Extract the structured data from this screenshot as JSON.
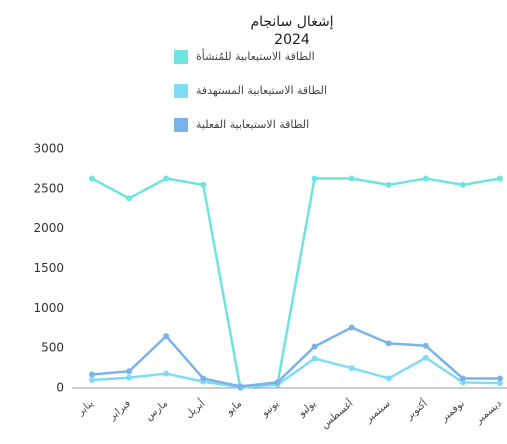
{
  "chart_data": {
    "type": "line",
    "title": "إشغال سانجام",
    "subtitle": "2024",
    "categories": [
      "يناير",
      "فبراير",
      "مارس",
      "أبريل",
      "مايو",
      "يونيو",
      "يوليو",
      "أغسطس",
      "سبتمبر",
      "أكتوبر",
      "نوفمبر",
      "ديسمبر"
    ],
    "series": [
      {
        "name": "الطاقة الاستيعابية للمُنشأة",
        "color": "#6fe3df",
        "values": [
          2630,
          2380,
          2630,
          2550,
          0,
          50,
          2630,
          2630,
          2550,
          2630,
          2550,
          2630
        ]
      },
      {
        "name": "الطاقة الاستيعابية المستهدفة",
        "color": "#7fdcf7",
        "values": [
          100,
          130,
          180,
          80,
          10,
          40,
          370,
          250,
          120,
          380,
          70,
          60
        ]
      },
      {
        "name": "الطاقة الاستيعابية الفعلية",
        "color": "#7bb3e8",
        "values": [
          170,
          210,
          650,
          120,
          20,
          70,
          520,
          760,
          560,
          530,
          120,
          120
        ]
      }
    ],
    "ylim": [
      0,
      3000
    ],
    "yticks": [
      0,
      500,
      1000,
      1500,
      2000,
      2500,
      3000
    ],
    "grid": false
  }
}
